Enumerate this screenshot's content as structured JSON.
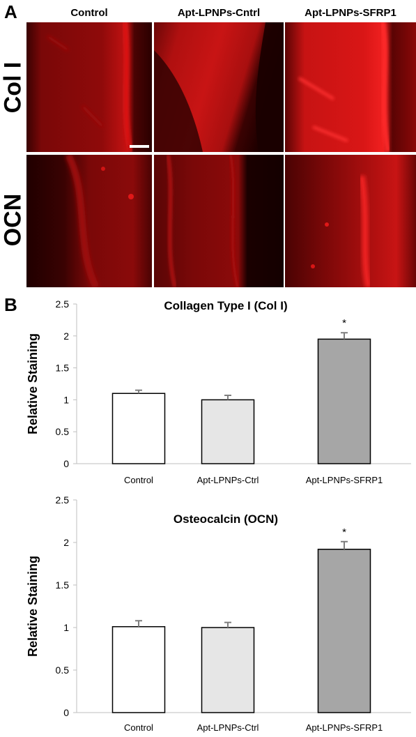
{
  "panel_a": {
    "letter": "A",
    "columns": [
      "Control",
      "Apt-LPNPs-Cntrl",
      "Apt-LPNPs-SFRP1"
    ],
    "rows": [
      "Col I",
      "OCN"
    ]
  },
  "panel_b": {
    "letter": "B"
  },
  "colors": {
    "background_dark": "#2a0000",
    "stain_red": "#e01010",
    "bar_control": "#ffffff",
    "bar_ctrl": "#e6e6e6",
    "bar_sfrp1": "#a6a6a6",
    "bar_edge": "#000000",
    "axis": "#bfbfbf",
    "errorbar": "#7f7f7f"
  },
  "chart_data": [
    {
      "type": "bar",
      "title": "Collagen Type I (Col I)",
      "ylabel": "Relative Staining",
      "categories": [
        "Control",
        "Apt-LPNPs-Ctrl",
        "Apt-LPNPs-SFRP1"
      ],
      "values": [
        1.1,
        1.0,
        1.95
      ],
      "errors": [
        0.05,
        0.07,
        0.1
      ],
      "annotations": [
        "",
        "",
        "*"
      ],
      "ylim": [
        0,
        2.5
      ],
      "yticks": [
        "0",
        "0.5",
        "1",
        "1.5",
        "2",
        "2.5"
      ],
      "grid": false
    },
    {
      "type": "bar",
      "title": "Osteocalcin (OCN)",
      "ylabel": "Relative Staining",
      "categories": [
        "Control",
        "Apt-LPNPs-Ctrl",
        "Apt-LPNPs-SFRP1"
      ],
      "values": [
        1.01,
        1.0,
        1.92
      ],
      "errors": [
        0.07,
        0.06,
        0.09
      ],
      "annotations": [
        "",
        "",
        "*"
      ],
      "ylim": [
        0,
        2.5
      ],
      "yticks": [
        "0",
        "0.5",
        "1",
        "1.5",
        "2",
        "2.5"
      ],
      "grid": false
    }
  ]
}
